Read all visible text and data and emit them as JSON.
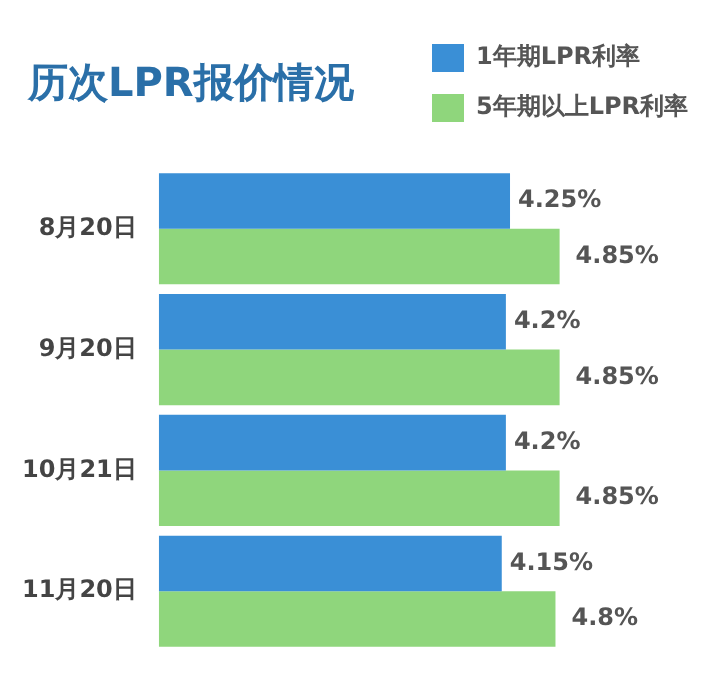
{
  "chart_data": {
    "type": "bar",
    "title": "历次LPR报价情况",
    "orientation": "horizontal",
    "categories": [
      "8月20日",
      "9月20日",
      "10月21日",
      "11月20日"
    ],
    "series": [
      {
        "name": "1年期LPR利率",
        "color": "#3a8fd6",
        "values": [
          4.25,
          4.2,
          4.2,
          4.15
        ],
        "value_labels": [
          "4.25%",
          "4.2%",
          "4.2%",
          "4.15%"
        ]
      },
      {
        "name": "5年期以上LPR利率",
        "color": "#8fd67c",
        "values": [
          4.85,
          4.85,
          4.85,
          4.8
        ],
        "value_labels": [
          "4.85%",
          "4.85%",
          "4.85%",
          "4.8%"
        ]
      }
    ],
    "legend": "top right"
  }
}
